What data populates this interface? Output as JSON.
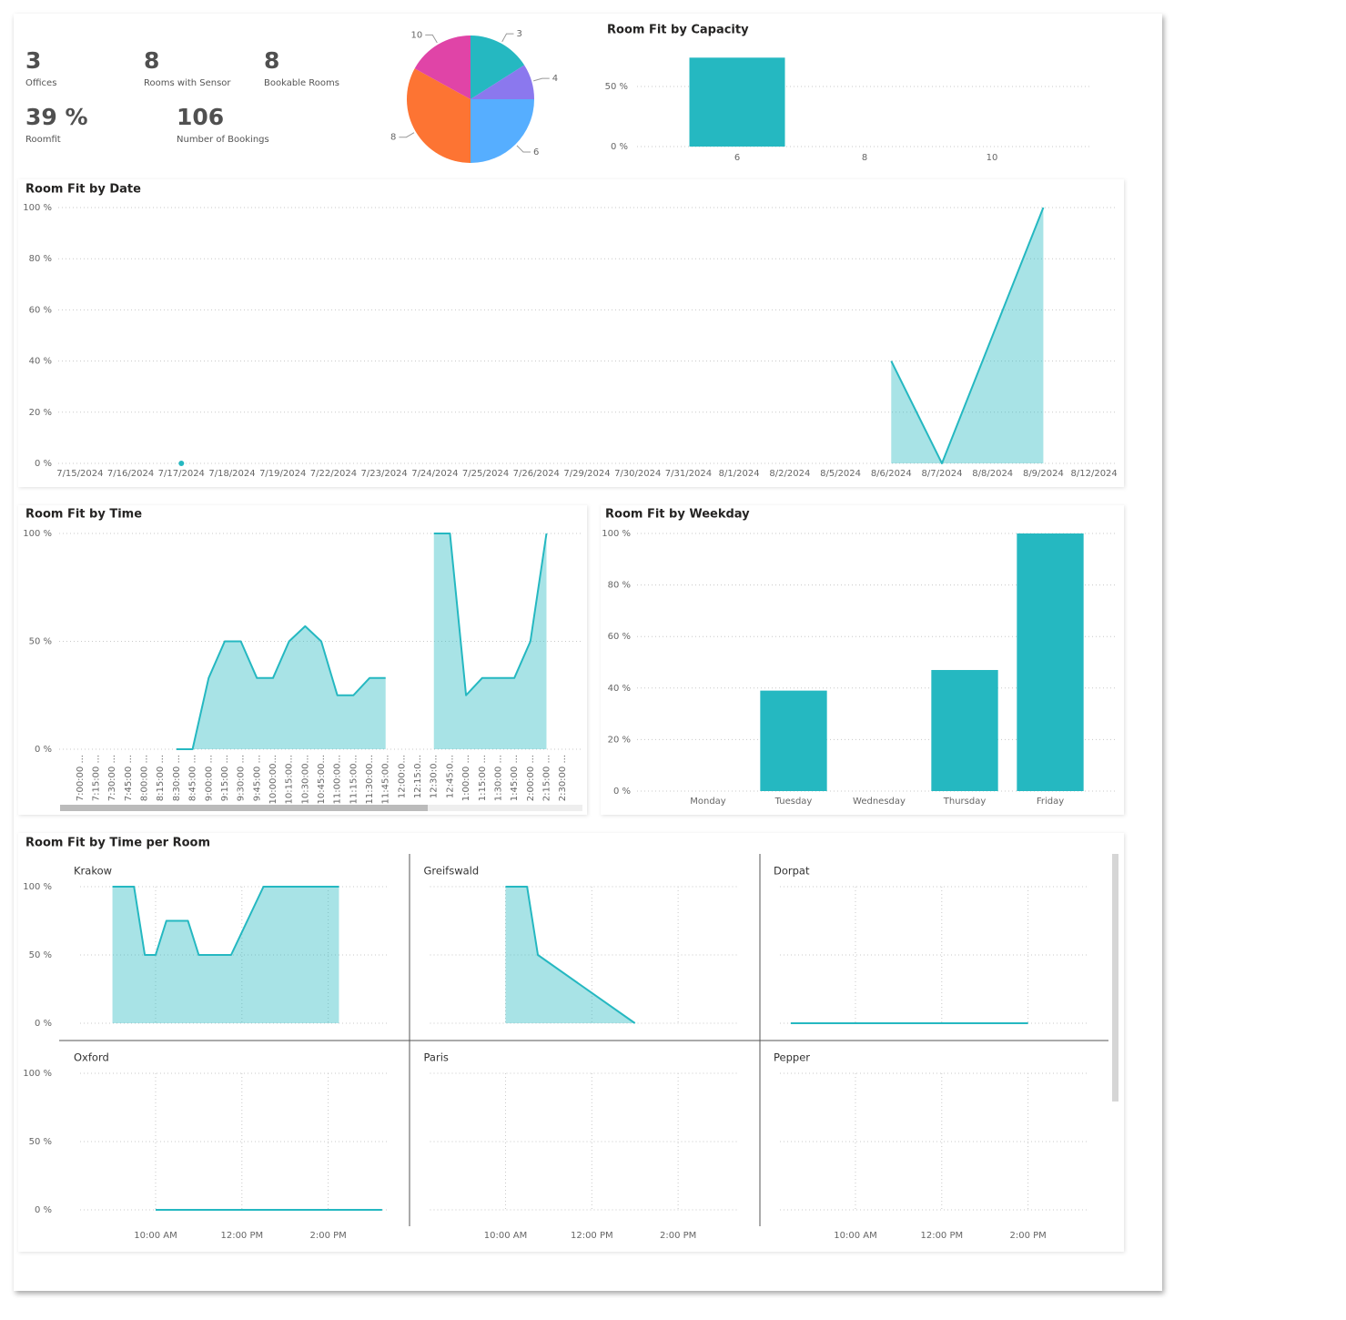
{
  "kpis": [
    {
      "value": 3,
      "label": "Offices"
    },
    {
      "value": 8,
      "label": "Rooms with Sensor"
    },
    {
      "value": 8,
      "label": "Bookable Rooms"
    },
    {
      "value": "39 %",
      "label": "Roomfit"
    },
    {
      "value": 106,
      "label": "Number of Bookings"
    }
  ],
  "chart_data": [
    {
      "type": "pie",
      "categories": [
        "3",
        "4",
        "6",
        "8",
        "10"
      ],
      "values": [
        16,
        9,
        25,
        33,
        17
      ],
      "colors": [
        "#25b8c1",
        "#8b78ee",
        "#56aeff",
        "#fd7433",
        "#e044a7"
      ]
    },
    {
      "type": "bar",
      "title": "Room Fit by Capacity",
      "categories": [
        "6",
        "8",
        "10"
      ],
      "values": [
        74,
        null,
        null
      ],
      "color": "#25b8c1",
      "ylim": [
        0,
        75
      ],
      "yticks": [
        {
          "value": 0,
          "label": "0 %"
        },
        {
          "value": 50,
          "label": "50 %"
        }
      ],
      "grid": true
    },
    {
      "type": "area",
      "title": "Room Fit by Date",
      "categories": [
        "7/15/2024",
        "7/16/2024",
        "7/17/2024",
        "7/18/2024",
        "7/19/2024",
        "7/22/2024",
        "7/23/2024",
        "7/24/2024",
        "7/25/2024",
        "7/26/2024",
        "7/29/2024",
        "7/30/2024",
        "7/31/2024",
        "8/1/2024",
        "8/2/2024",
        "8/5/2024",
        "8/6/2024",
        "8/7/2024",
        "8/8/2024",
        "8/9/2024",
        "8/12/2024"
      ],
      "values": [
        null,
        null,
        0,
        null,
        null,
        null,
        null,
        null,
        null,
        null,
        null,
        null,
        null,
        null,
        null,
        null,
        40,
        0,
        50,
        100,
        null
      ],
      "color": "#25b8c1",
      "ylim": [
        0,
        100
      ],
      "yticks": [
        {
          "value": 0,
          "label": "0 %"
        },
        {
          "value": 20,
          "label": "20 %"
        },
        {
          "value": 40,
          "label": "40 %"
        },
        {
          "value": 60,
          "label": "60 %"
        },
        {
          "value": 80,
          "label": "80 %"
        },
        {
          "value": 100,
          "label": "100 %"
        }
      ],
      "grid": true
    },
    {
      "type": "area",
      "title": "Room Fit by Time",
      "categories": [
        "7:00:00 ...",
        "7:15:00 ...",
        "7:30:00 ...",
        "7:45:00 ...",
        "8:00:00 ...",
        "8:15:00 ...",
        "8:30:00 ...",
        "8:45:00 ...",
        "9:00:00 ...",
        "9:15:00 ...",
        "9:30:00 ...",
        "9:45:00 ...",
        "10:00:00...",
        "10:15:00...",
        "10:30:00...",
        "10:45:00...",
        "11:00:00...",
        "11:15:00...",
        "11:30:00...",
        "11:45:00...",
        "12:00:0...",
        "12:15:0...",
        "12:30:0...",
        "12:45:0...",
        "1:00:00 ...",
        "1:15:00 ...",
        "1:30:00 ...",
        "1:45:00 ...",
        "2:00:00 ...",
        "2:15:00 ...",
        "2:30:00 ..."
      ],
      "values": [
        null,
        null,
        null,
        null,
        null,
        null,
        0,
        0,
        33,
        50,
        50,
        33,
        33,
        50,
        57,
        50,
        25,
        25,
        33,
        33,
        null,
        null,
        100,
        100,
        25,
        33,
        33,
        33,
        50,
        100,
        null
      ],
      "color": "#25b8c1",
      "ylim": [
        0,
        100
      ],
      "yticks": [
        {
          "value": 0,
          "label": "0 %"
        },
        {
          "value": 50,
          "label": "50 %"
        },
        {
          "value": 100,
          "label": "100 %"
        }
      ],
      "grid": true,
      "scrollbar": true
    },
    {
      "type": "bar",
      "title": "Room Fit by Weekday",
      "categories": [
        "Monday",
        "Tuesday",
        "Wednesday",
        "Thursday",
        "Friday"
      ],
      "values": [
        null,
        39,
        null,
        47,
        100
      ],
      "color": "#25b8c1",
      "ylim": [
        0,
        100
      ],
      "yticks": [
        {
          "value": 0,
          "label": "0 %"
        },
        {
          "value": 20,
          "label": "20 %"
        },
        {
          "value": 40,
          "label": "40 %"
        },
        {
          "value": 60,
          "label": "60 %"
        },
        {
          "value": 80,
          "label": "80 %"
        },
        {
          "value": 100,
          "label": "100 %"
        }
      ],
      "grid": true
    },
    {
      "type": "area",
      "title": "Room Fit by Time per Room",
      "color": "#25b8c1",
      "xlim": [
        8.25,
        15.4
      ],
      "xticks": [
        {
          "value": 10,
          "label": "10:00 AM"
        },
        {
          "value": 12,
          "label": "12:00 PM"
        },
        {
          "value": 14,
          "label": "2:00 PM"
        }
      ],
      "ylim": [
        0,
        100
      ],
      "yticks": [
        {
          "value": 0,
          "label": "0 %"
        },
        {
          "value": 50,
          "label": "50 %"
        },
        {
          "value": 100,
          "label": "100 %"
        }
      ],
      "grid": true,
      "panels": [
        {
          "name": "Krakow",
          "x": [
            9,
            9.5,
            9.75,
            10,
            10.25,
            10.75,
            11,
            11.75,
            12.5,
            14.25
          ],
          "values": [
            100,
            100,
            50,
            50,
            75,
            75,
            50,
            50,
            100,
            100
          ]
        },
        {
          "name": "Greifswald",
          "x": [
            10,
            10.5,
            10.75,
            13
          ],
          "values": [
            100,
            100,
            50,
            0
          ]
        },
        {
          "name": "Dorpat",
          "x": [
            8.5,
            14
          ],
          "values": [
            0,
            0
          ]
        },
        {
          "name": "Oxford",
          "x": [
            10,
            15.25
          ],
          "values": [
            0,
            0
          ]
        },
        {
          "name": "Paris",
          "x": [],
          "values": []
        },
        {
          "name": "Pepper",
          "x": [],
          "values": []
        }
      ]
    }
  ]
}
